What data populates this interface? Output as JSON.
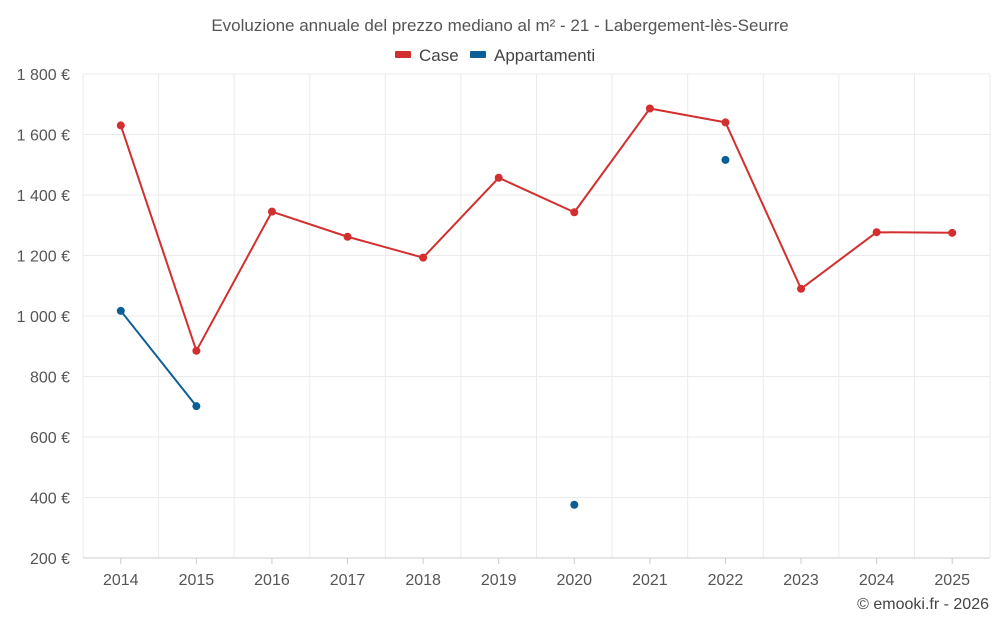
{
  "chart_data": {
    "type": "line",
    "title": "Evoluzione annuale del prezzo mediano al m² - 21 - Labergement-lès-Seurre",
    "categories": [
      "2014",
      "2015",
      "2016",
      "2017",
      "2018",
      "2019",
      "2020",
      "2021",
      "2022",
      "2023",
      "2024",
      "2025"
    ],
    "series": [
      {
        "name": "Case",
        "color": "#d32f2f",
        "values": [
          1630,
          885,
          1345,
          1262,
          1193,
          1457,
          1343,
          1686,
          1640,
          1090,
          1277,
          1275
        ]
      },
      {
        "name": "Appartamenti",
        "color": "#0a6096",
        "values": [
          1017,
          702,
          null,
          null,
          null,
          null,
          376,
          null,
          1516,
          null,
          null,
          null
        ]
      }
    ],
    "y_ticks": [
      200,
      400,
      600,
      800,
      1000,
      1200,
      1400,
      1600,
      1800
    ],
    "y_tick_labels": [
      "200 €",
      "400 €",
      "600 €",
      "800 €",
      "1 000 €",
      "1 200 €",
      "1 400 €",
      "1 600 €",
      "1 800 €"
    ],
    "ylim": [
      200,
      1800
    ],
    "xlabel": "",
    "ylabel": "",
    "legend_position": "top-center",
    "grid": true
  },
  "credit": "© emooki.fr - 2026"
}
